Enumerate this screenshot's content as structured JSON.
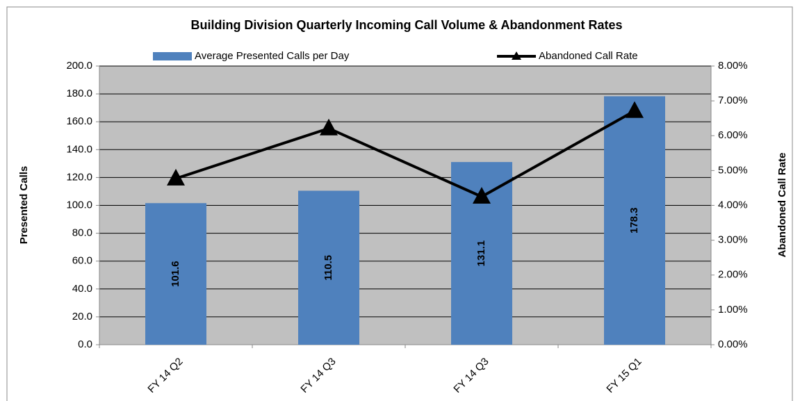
{
  "chart_data": {
    "type": "bar_line",
    "title": "Building Division Quarterly Incoming Call Volume & Abandonment Rates",
    "y_label": "Presented Calls",
    "y2_label": "Abandoned Call Rate",
    "categories": [
      "FY 14 Q2",
      "FY 14 Q3",
      "FY 14 Q3",
      "FY 15 Q1"
    ],
    "series": [
      {
        "name": "Average Presented Calls per Day",
        "type": "bar",
        "color": "#4f81bd",
        "values": [
          101.6,
          110.5,
          131.1,
          178.3
        ]
      },
      {
        "name": "Abandoned Call Rate",
        "type": "line",
        "axis": "y2",
        "color": "#000000",
        "values": [
          4.77,
          6.21,
          4.25,
          6.71
        ]
      }
    ],
    "ylim": [
      0,
      200
    ],
    "yticks": [
      {
        "value": 0,
        "label": "0.0"
      },
      {
        "value": 20,
        "label": "20.0"
      },
      {
        "value": 40,
        "label": "40.0"
      },
      {
        "value": 60,
        "label": "60.0"
      },
      {
        "value": 80,
        "label": "80.0"
      },
      {
        "value": 100,
        "label": "100.0"
      },
      {
        "value": 120,
        "label": "120.0"
      },
      {
        "value": 140,
        "label": "140.0"
      },
      {
        "value": 160,
        "label": "160.0"
      },
      {
        "value": 180,
        "label": "180.0"
      },
      {
        "value": 200,
        "label": "200.0"
      }
    ],
    "y2lim": [
      0,
      8
    ],
    "y2ticks": [
      {
        "value": 0,
        "label": "0.00%"
      },
      {
        "value": 1,
        "label": "1.00%"
      },
      {
        "value": 2,
        "label": "2.00%"
      },
      {
        "value": 3,
        "label": "3.00%"
      },
      {
        "value": 4,
        "label": "4.00%"
      },
      {
        "value": 5,
        "label": "5.00%"
      },
      {
        "value": 6,
        "label": "6.00%"
      },
      {
        "value": 7,
        "label": "7.00%"
      },
      {
        "value": 8,
        "label": "8.00%"
      }
    ],
    "grid": true,
    "legend": "top"
  }
}
